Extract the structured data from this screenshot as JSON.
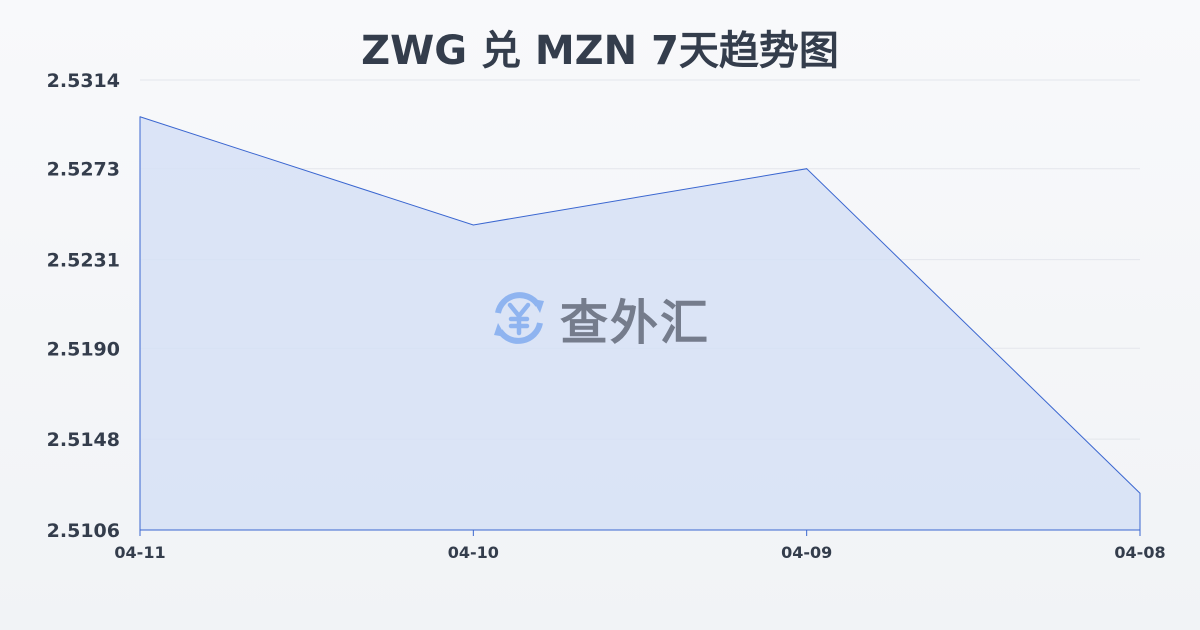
{
  "chart_data": {
    "type": "area",
    "title": "ZWG 兑 MZN 7天趋势图",
    "categories": [
      "04-11",
      "04-10",
      "04-09",
      "04-08"
    ],
    "series": [
      {
        "values": [
          2.5297,
          2.5247,
          2.5273,
          2.5123
        ]
      }
    ],
    "yticks": [
      "2.5314",
      "2.5273",
      "2.5231",
      "2.5190",
      "2.5148",
      "2.5106"
    ],
    "ylim": [
      2.5106,
      2.5314
    ],
    "grid": true,
    "colors": {
      "line": "#3a66d0",
      "fill": "#d6e1f6"
    }
  },
  "watermark": {
    "text": "查外汇",
    "icon": "yen-exchange-icon"
  }
}
